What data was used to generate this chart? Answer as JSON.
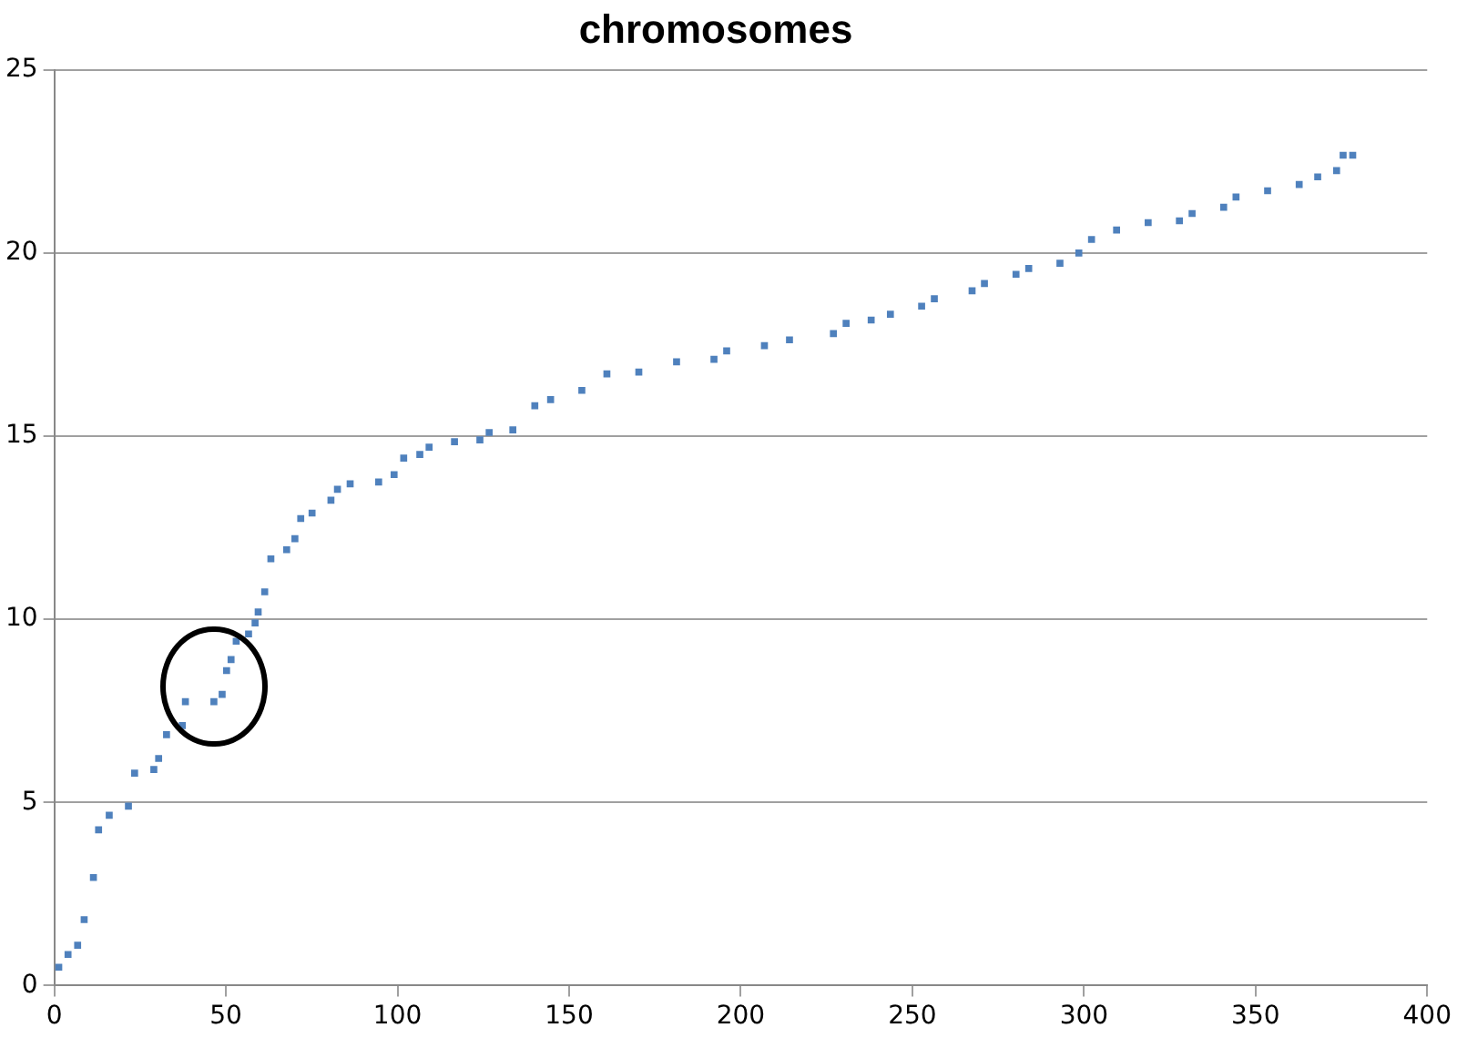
{
  "chart_data": {
    "type": "scatter",
    "title": "chromosomes",
    "x": [
      1.3,
      4,
      6.8,
      8.7,
      11.4,
      12.9,
      16,
      21.6,
      23.4,
      29,
      30.4,
      32.7,
      37.3,
      38.2,
      46.5,
      48.9,
      50.2,
      51.5,
      53,
      56.6,
      58.5,
      59.4,
      61.3,
      63.1,
      67.7,
      70.1,
      71.8,
      75.1,
      80.6,
      82.5,
      86.2,
      94.5,
      99,
      101.8,
      106.5,
      109.2,
      116.6,
      124,
      126.7,
      133.6,
      140,
      144.6,
      153.7,
      161,
      170.3,
      181.3,
      192.2,
      195.9,
      206.9,
      214.2,
      227,
      230.7,
      238,
      243.6,
      252.7,
      256.4,
      267.4,
      271,
      280.2,
      283.9,
      293,
      298.5,
      302.2,
      309.5,
      318.7,
      327.8,
      331.5,
      340.7,
      344.3,
      353.5,
      362.7,
      368.1,
      373.6,
      375.5,
      378.3
    ],
    "series": [
      {
        "color": "#4f81bd",
        "values": [
          0.5,
          0.85,
          1.1,
          1.8,
          2.95,
          4.25,
          4.65,
          4.9,
          5.8,
          5.9,
          6.2,
          6.85,
          7.1,
          7.75,
          7.75,
          7.95,
          8.6,
          8.9,
          9.4,
          9.6,
          9.9,
          10.2,
          10.75,
          11.65,
          11.9,
          12.2,
          12.75,
          12.9,
          13.25,
          13.55,
          13.7,
          13.75,
          13.95,
          14.4,
          14.5,
          14.7,
          14.85,
          14.9,
          15.1,
          15.17,
          15.83,
          16,
          16.25,
          16.7,
          16.75,
          17.03,
          17.1,
          17.33,
          17.47,
          17.63,
          17.8,
          18.08,
          18.17,
          18.33,
          18.55,
          18.75,
          18.97,
          19.17,
          19.42,
          19.58,
          19.72,
          20,
          20.37,
          20.63,
          20.83,
          20.88,
          21.08,
          21.25,
          21.53,
          21.7,
          21.87,
          22.08,
          22.25,
          22.67,
          22.67
        ]
      }
    ],
    "xlim": [
      0,
      400
    ],
    "xticks": [
      0,
      50,
      100,
      150,
      200,
      250,
      300,
      350,
      400
    ],
    "ylim": [
      0,
      25
    ],
    "yticks": [
      0,
      5,
      10,
      15,
      20,
      25
    ],
    "grid": "y",
    "marker": "square",
    "legend": false
  }
}
